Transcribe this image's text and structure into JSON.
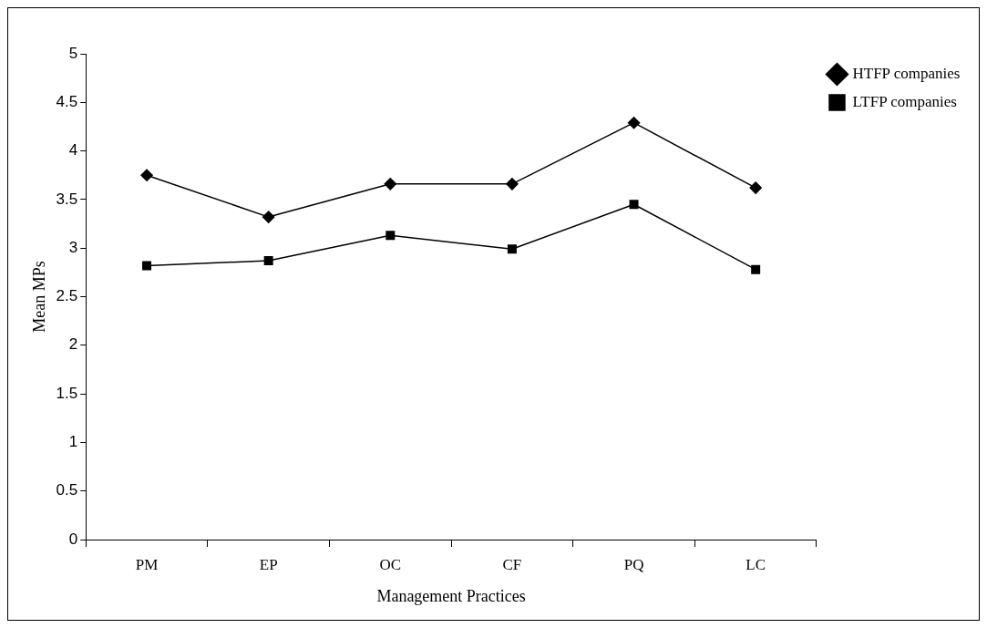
{
  "chart_data": {
    "type": "line",
    "xlabel": "Management Practices",
    "ylabel": "Mean MPs",
    "categories": [
      "PM",
      "EP",
      "OC",
      "CF",
      "PQ",
      "LC"
    ],
    "series": [
      {
        "name": "HTFP companies",
        "color": "#000000",
        "marker": "diamond",
        "values": [
          3.75,
          3.32,
          3.66,
          3.66,
          4.29,
          3.62
        ]
      },
      {
        "name": "LTFP companies",
        "color": "#000000",
        "marker": "square",
        "values": [
          2.82,
          2.87,
          3.13,
          2.99,
          3.45,
          2.78
        ]
      }
    ],
    "ylim": [
      0,
      5
    ],
    "yticks": [
      0,
      0.5,
      1,
      1.5,
      2,
      2.5,
      3,
      3.5,
      4,
      4.5,
      5
    ],
    "grid": false,
    "legend": "top right",
    "line_style": "solid"
  }
}
